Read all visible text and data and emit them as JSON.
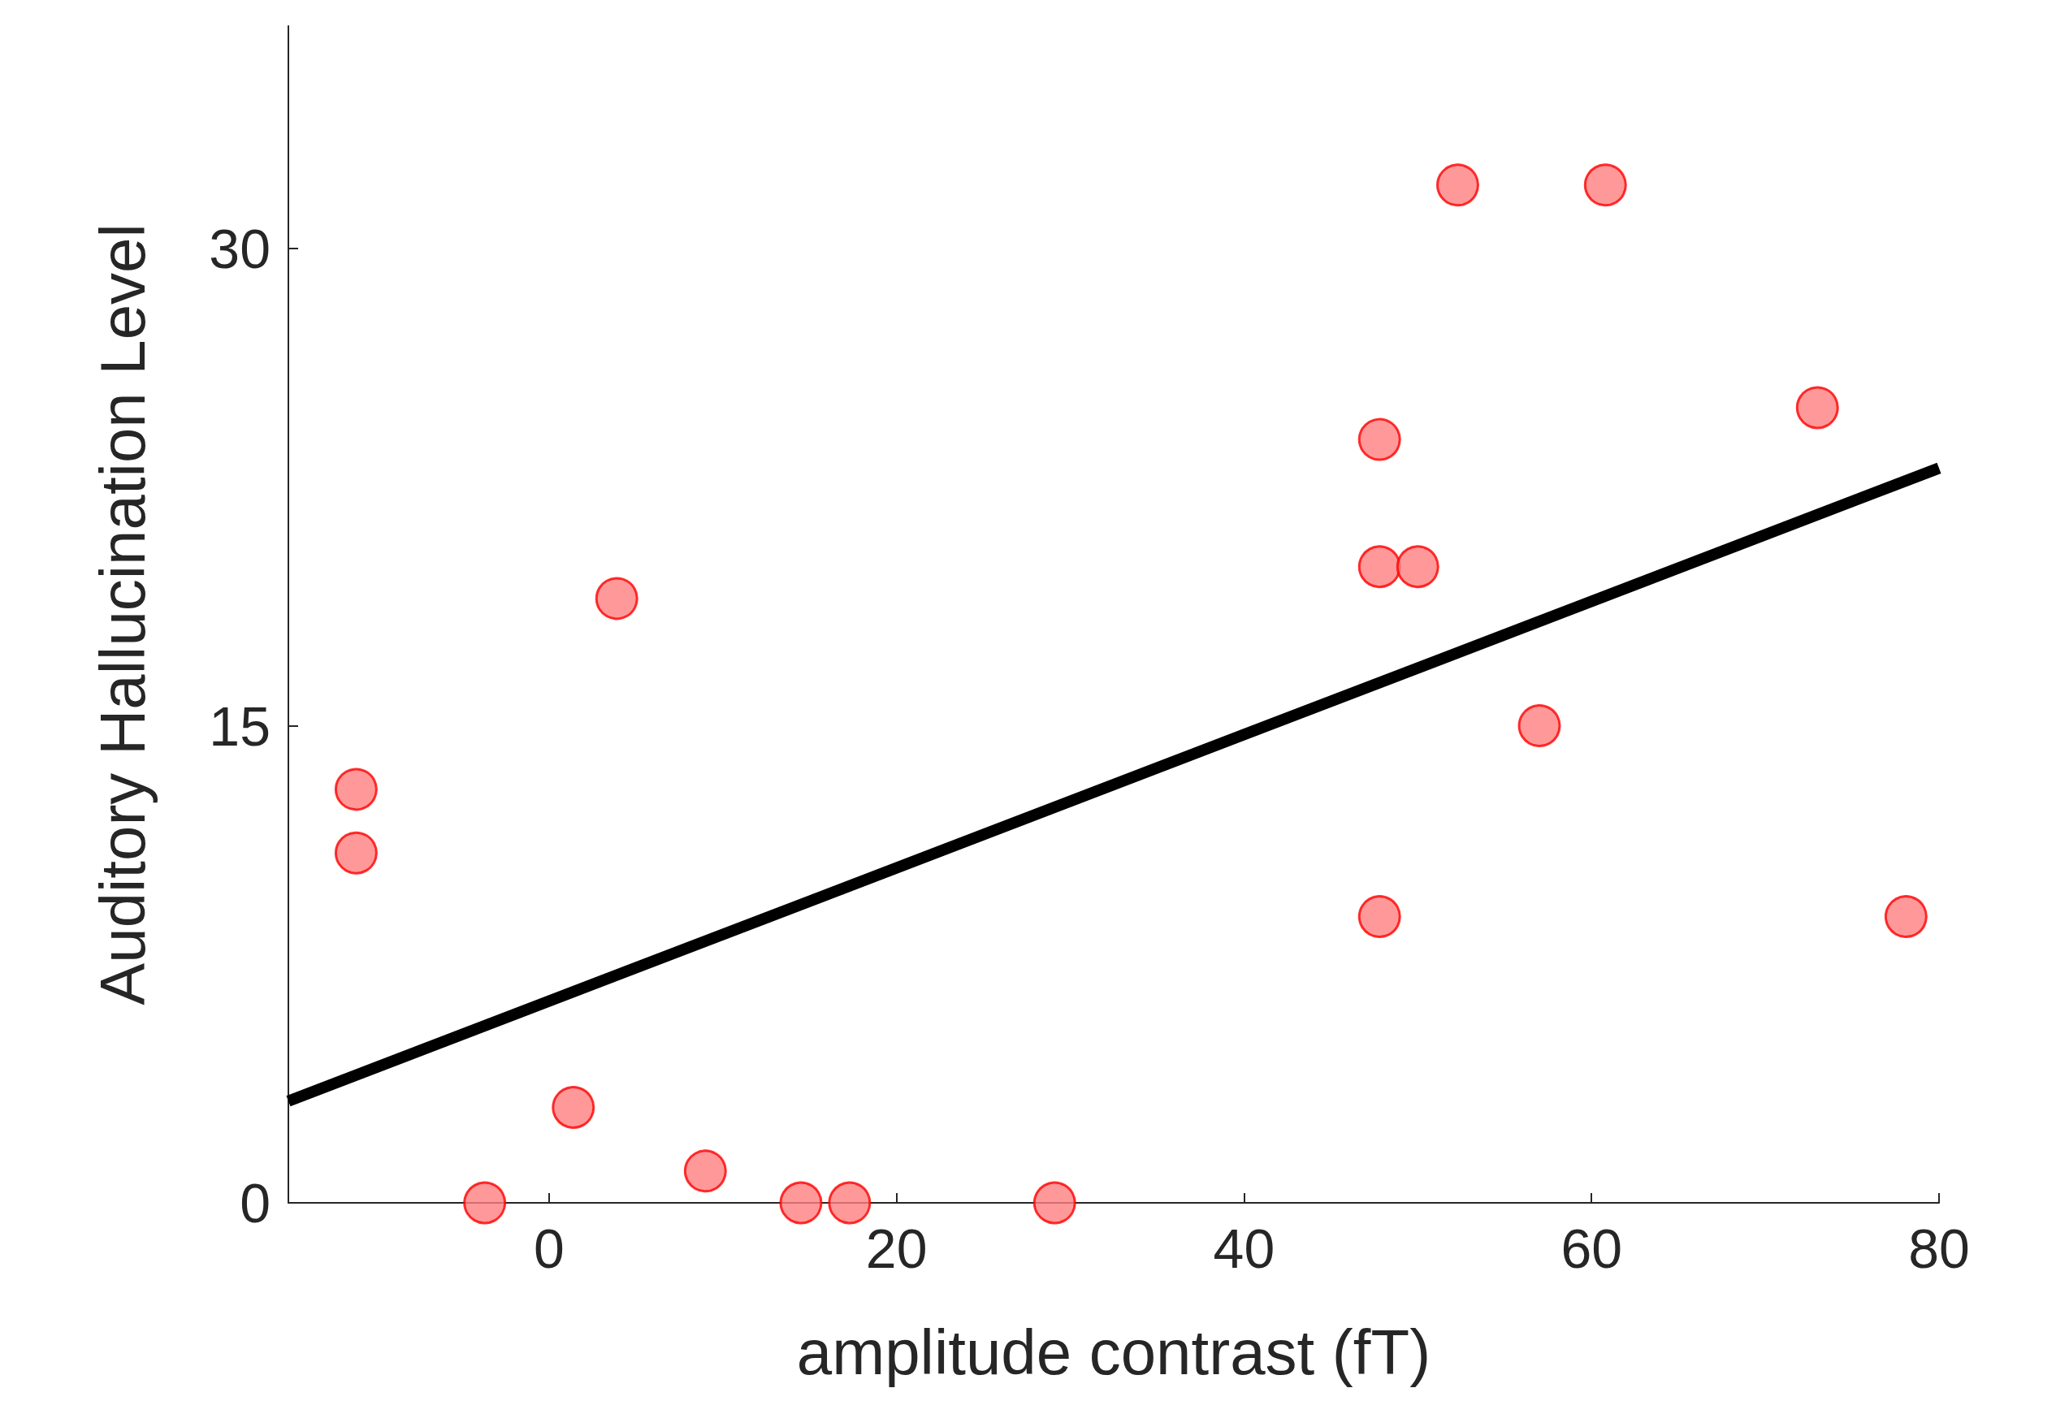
{
  "chart_data": {
    "type": "scatter",
    "xlabel": "amplitude contrast (fT)",
    "ylabel": "Auditory Hallucination Level",
    "xlim": [
      -15,
      80
    ],
    "xticks": [
      0,
      20,
      40,
      60,
      80
    ],
    "ylim": [
      0,
      37
    ],
    "yticks": [
      0,
      15,
      30
    ],
    "grid": false,
    "marker": "circle",
    "series": [
      {
        "type": "scatter",
        "color": "#ff8080",
        "x": [
          -11.1,
          -11.1,
          -3.7,
          1.4,
          3.9,
          9.0,
          14.5,
          17.3,
          29.1,
          47.8,
          47.8,
          50.0,
          47.8,
          52.3,
          60.8,
          57.0,
          73.0,
          78.1
        ],
        "values": [
          13,
          11,
          0,
          3,
          19,
          1,
          0,
          0,
          0,
          24,
          20,
          20,
          9,
          32,
          32,
          15,
          25,
          9
        ]
      },
      {
        "type": "line",
        "color": "#000000",
        "x": [
          -15,
          80
        ],
        "values": [
          3.2,
          23.1
        ],
        "marker": "none",
        "line_style": "solid"
      }
    ]
  }
}
